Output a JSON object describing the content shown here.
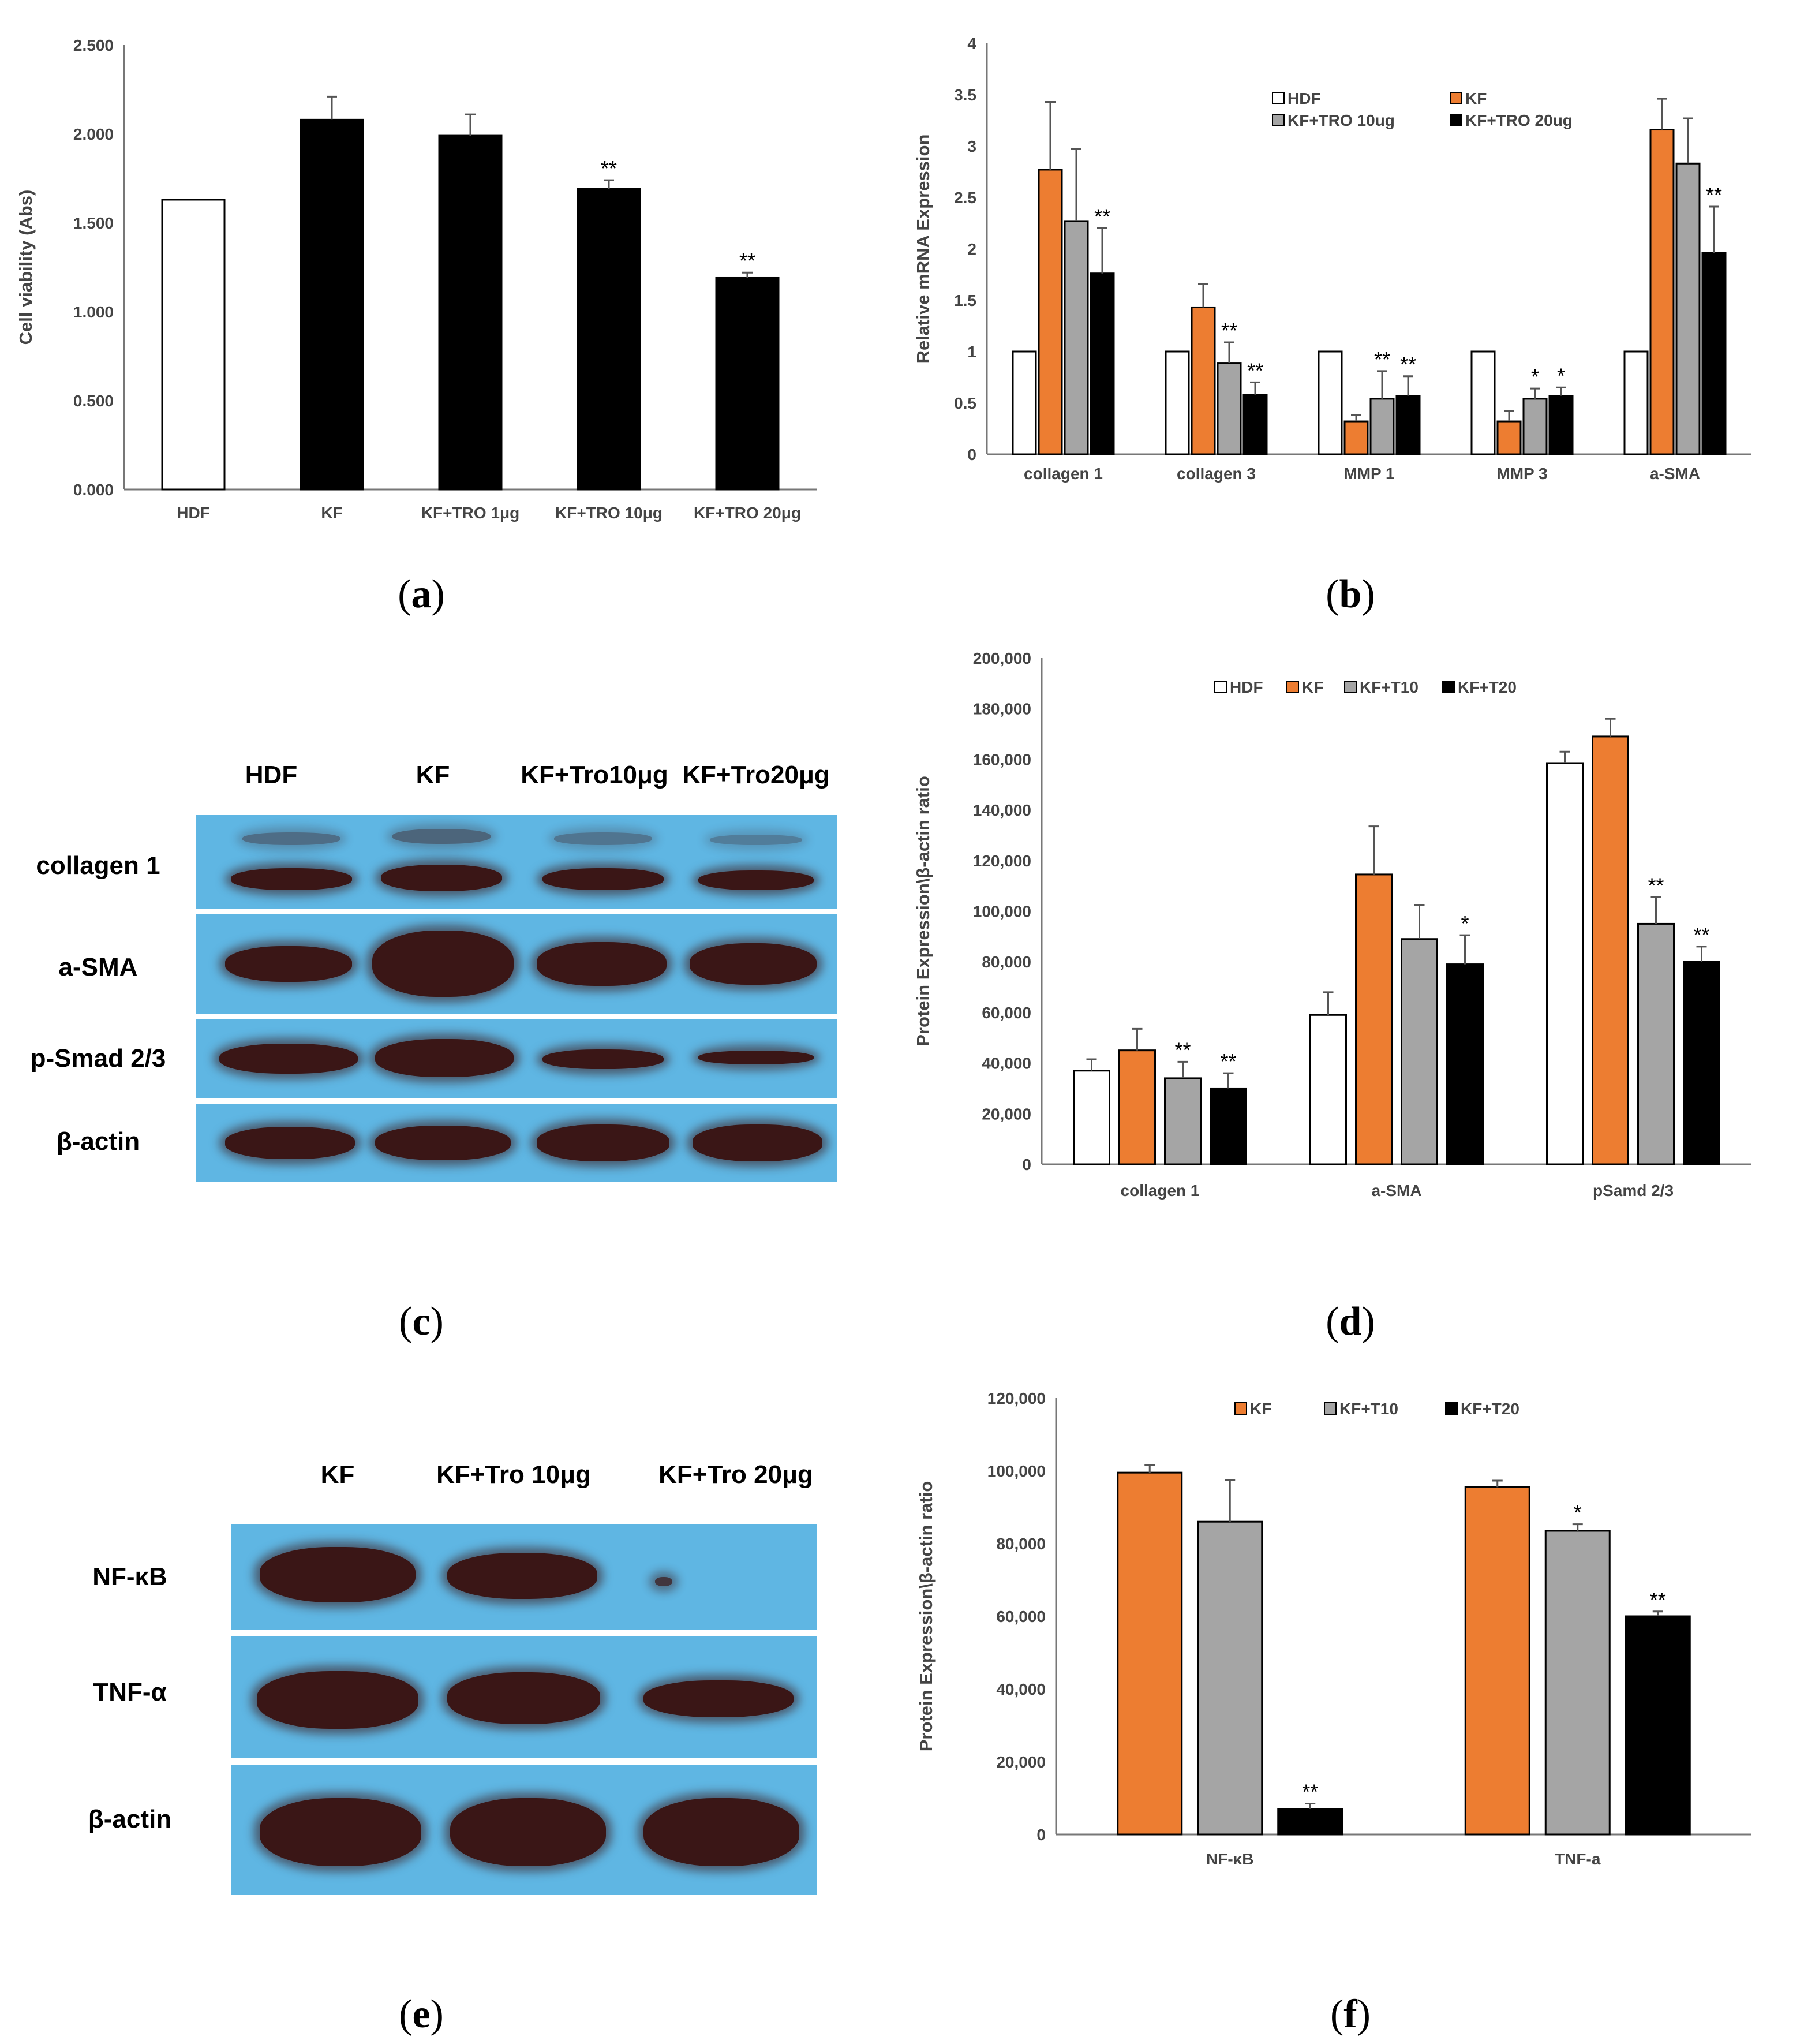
{
  "panels": {
    "a": {
      "open": "(",
      "letter": "a",
      "close": ")"
    },
    "b": {
      "open": "(",
      "letter": "b",
      "close": ")"
    },
    "c": {
      "open": "(",
      "letter": "c",
      "close": ")"
    },
    "d": {
      "open": "(",
      "letter": "d",
      "close": ")"
    },
    "e": {
      "open": "(",
      "letter": "e",
      "close": ")"
    },
    "f": {
      "open": "(",
      "letter": "f",
      "close": ")"
    }
  },
  "colors": {
    "hdf": "#ffffff",
    "kf": "#ed7d31",
    "t10": "#a5a5a5",
    "t20": "#000000",
    "blot_bg": "#5fb6e3",
    "band": "#3a1616"
  },
  "blot_c": {
    "lanes": [
      "HDF",
      "KF",
      "KF+Tro10μg",
      "KF+Tro20μg"
    ],
    "rows": [
      "collagen 1",
      "a-SMA",
      "p-Smad 2/3",
      "β-actin"
    ]
  },
  "blot_e": {
    "lanes": [
      "KF",
      "KF+Tro 10μg",
      "KF+Tro 20μg"
    ],
    "rows": [
      "NF-κB",
      "TNF-α",
      "β-actin"
    ]
  },
  "chart_data": [
    {
      "panel": "a",
      "type": "bar",
      "ylabel": "Cell viability (Abs)",
      "ylim": [
        0,
        2.5
      ],
      "yticks": [
        "0.000",
        "0.500",
        "1.000",
        "1.500",
        "2.000",
        "2.500"
      ],
      "categories": [
        "HDF",
        "KF",
        "KF+TRO 1μg",
        "KF+TRO 10μg",
        "KF+TRO 20μg"
      ],
      "values": [
        1.63,
        2.08,
        1.99,
        1.69,
        1.19
      ],
      "errors": [
        0.0,
        0.13,
        0.12,
        0.05,
        0.03
      ],
      "bar_colors": [
        "#ffffff",
        "#000000",
        "#000000",
        "#000000",
        "#000000"
      ],
      "significance": [
        "",
        "",
        "",
        "**",
        "**"
      ]
    },
    {
      "panel": "b",
      "type": "bar",
      "ylabel": "Relative mRNA Expression",
      "ylim": [
        0,
        4
      ],
      "yticks": [
        "0",
        "0.5",
        "1",
        "1.5",
        "2",
        "2.5",
        "3",
        "3.5",
        "4"
      ],
      "categories": [
        "collagen  1",
        "collagen  3",
        "MMP 1",
        "MMP 3",
        "a-SMA"
      ],
      "legend": [
        "HDF",
        "KF",
        "KF+TRO 10ug",
        "KF+TRO 20ug"
      ],
      "series": [
        {
          "name": "HDF",
          "color": "#ffffff",
          "values": [
            1,
            1,
            1,
            1,
            1
          ],
          "errors": [
            0,
            0,
            0,
            0,
            0
          ],
          "sig": [
            "",
            "",
            "",
            "",
            ""
          ]
        },
        {
          "name": "KF",
          "color": "#ed7d31",
          "values": [
            2.77,
            1.43,
            0.32,
            0.32,
            3.16
          ],
          "errors": [
            0.66,
            0.23,
            0.06,
            0.1,
            0.3
          ],
          "sig": [
            "",
            "",
            "",
            "",
            ""
          ]
        },
        {
          "name": "KF+TRO 10ug",
          "color": "#a5a5a5",
          "values": [
            2.27,
            0.89,
            0.54,
            0.54,
            2.83
          ],
          "errors": [
            0.7,
            0.2,
            0.27,
            0.1,
            0.44
          ],
          "sig": [
            "",
            "**",
            "**",
            "*",
            ""
          ]
        },
        {
          "name": "KF+TRO 20ug",
          "color": "#000000",
          "values": [
            1.76,
            0.58,
            0.57,
            0.57,
            1.96
          ],
          "errors": [
            0.44,
            0.12,
            0.19,
            0.08,
            0.45
          ],
          "sig": [
            "**",
            "**",
            "**",
            "*",
            "**"
          ]
        }
      ]
    },
    {
      "panel": "d",
      "type": "bar",
      "ylabel": "Protein Expression\\β-actin ratio",
      "ylim": [
        0,
        200000
      ],
      "yticks": [
        "0",
        "20,000",
        "40,000",
        "60,000",
        "80,000",
        "100,000",
        "120,000",
        "140,000",
        "160,000",
        "180,000",
        "200,000"
      ],
      "categories": [
        "collagen 1",
        "a-SMA",
        "pSamd 2/3"
      ],
      "legend": [
        "HDF",
        "KF",
        "KF+T10",
        "KF+T20"
      ],
      "series": [
        {
          "name": "HDF",
          "color": "#ffffff",
          "values": [
            37000,
            59000,
            158500
          ],
          "errors": [
            4500,
            9000,
            4500
          ],
          "sig": [
            "",
            "",
            ""
          ]
        },
        {
          "name": "KF",
          "color": "#ed7d31",
          "values": [
            45000,
            114500,
            169000
          ],
          "errors": [
            8500,
            19000,
            7000
          ],
          "sig": [
            "",
            "",
            ""
          ]
        },
        {
          "name": "KF+T10",
          "color": "#a5a5a5",
          "values": [
            34000,
            89000,
            95000
          ],
          "errors": [
            6500,
            13500,
            10500
          ],
          "sig": [
            "**",
            "",
            "**"
          ]
        },
        {
          "name": "KF+T20",
          "color": "#000000",
          "values": [
            30000,
            79000,
            80000
          ],
          "errors": [
            6000,
            11500,
            6000
          ],
          "sig": [
            "**",
            "*",
            "**"
          ]
        }
      ]
    },
    {
      "panel": "f",
      "type": "bar",
      "ylabel": "Protein Expression\\β-actin ratio",
      "ylim": [
        0,
        120000
      ],
      "yticks": [
        "0",
        "20,000",
        "40,000",
        "60,000",
        "80,000",
        "100,000",
        "120,000"
      ],
      "categories": [
        "NF-κB",
        "TNF-a"
      ],
      "legend": [
        "KF",
        "KF+T10",
        "KF+T20"
      ],
      "series": [
        {
          "name": "KF",
          "color": "#ed7d31",
          "values": [
            99500,
            95500
          ],
          "errors": [
            2000,
            1800
          ],
          "sig": [
            "",
            ""
          ]
        },
        {
          "name": "KF+T10",
          "color": "#a5a5a5",
          "values": [
            86000,
            83500
          ],
          "errors": [
            11500,
            1800
          ],
          "sig": [
            "",
            "*"
          ]
        },
        {
          "name": "KF+T20",
          "color": "#000000",
          "values": [
            7000,
            60000
          ],
          "errors": [
            1500,
            1300
          ],
          "sig": [
            "**",
            "**"
          ]
        }
      ]
    }
  ]
}
